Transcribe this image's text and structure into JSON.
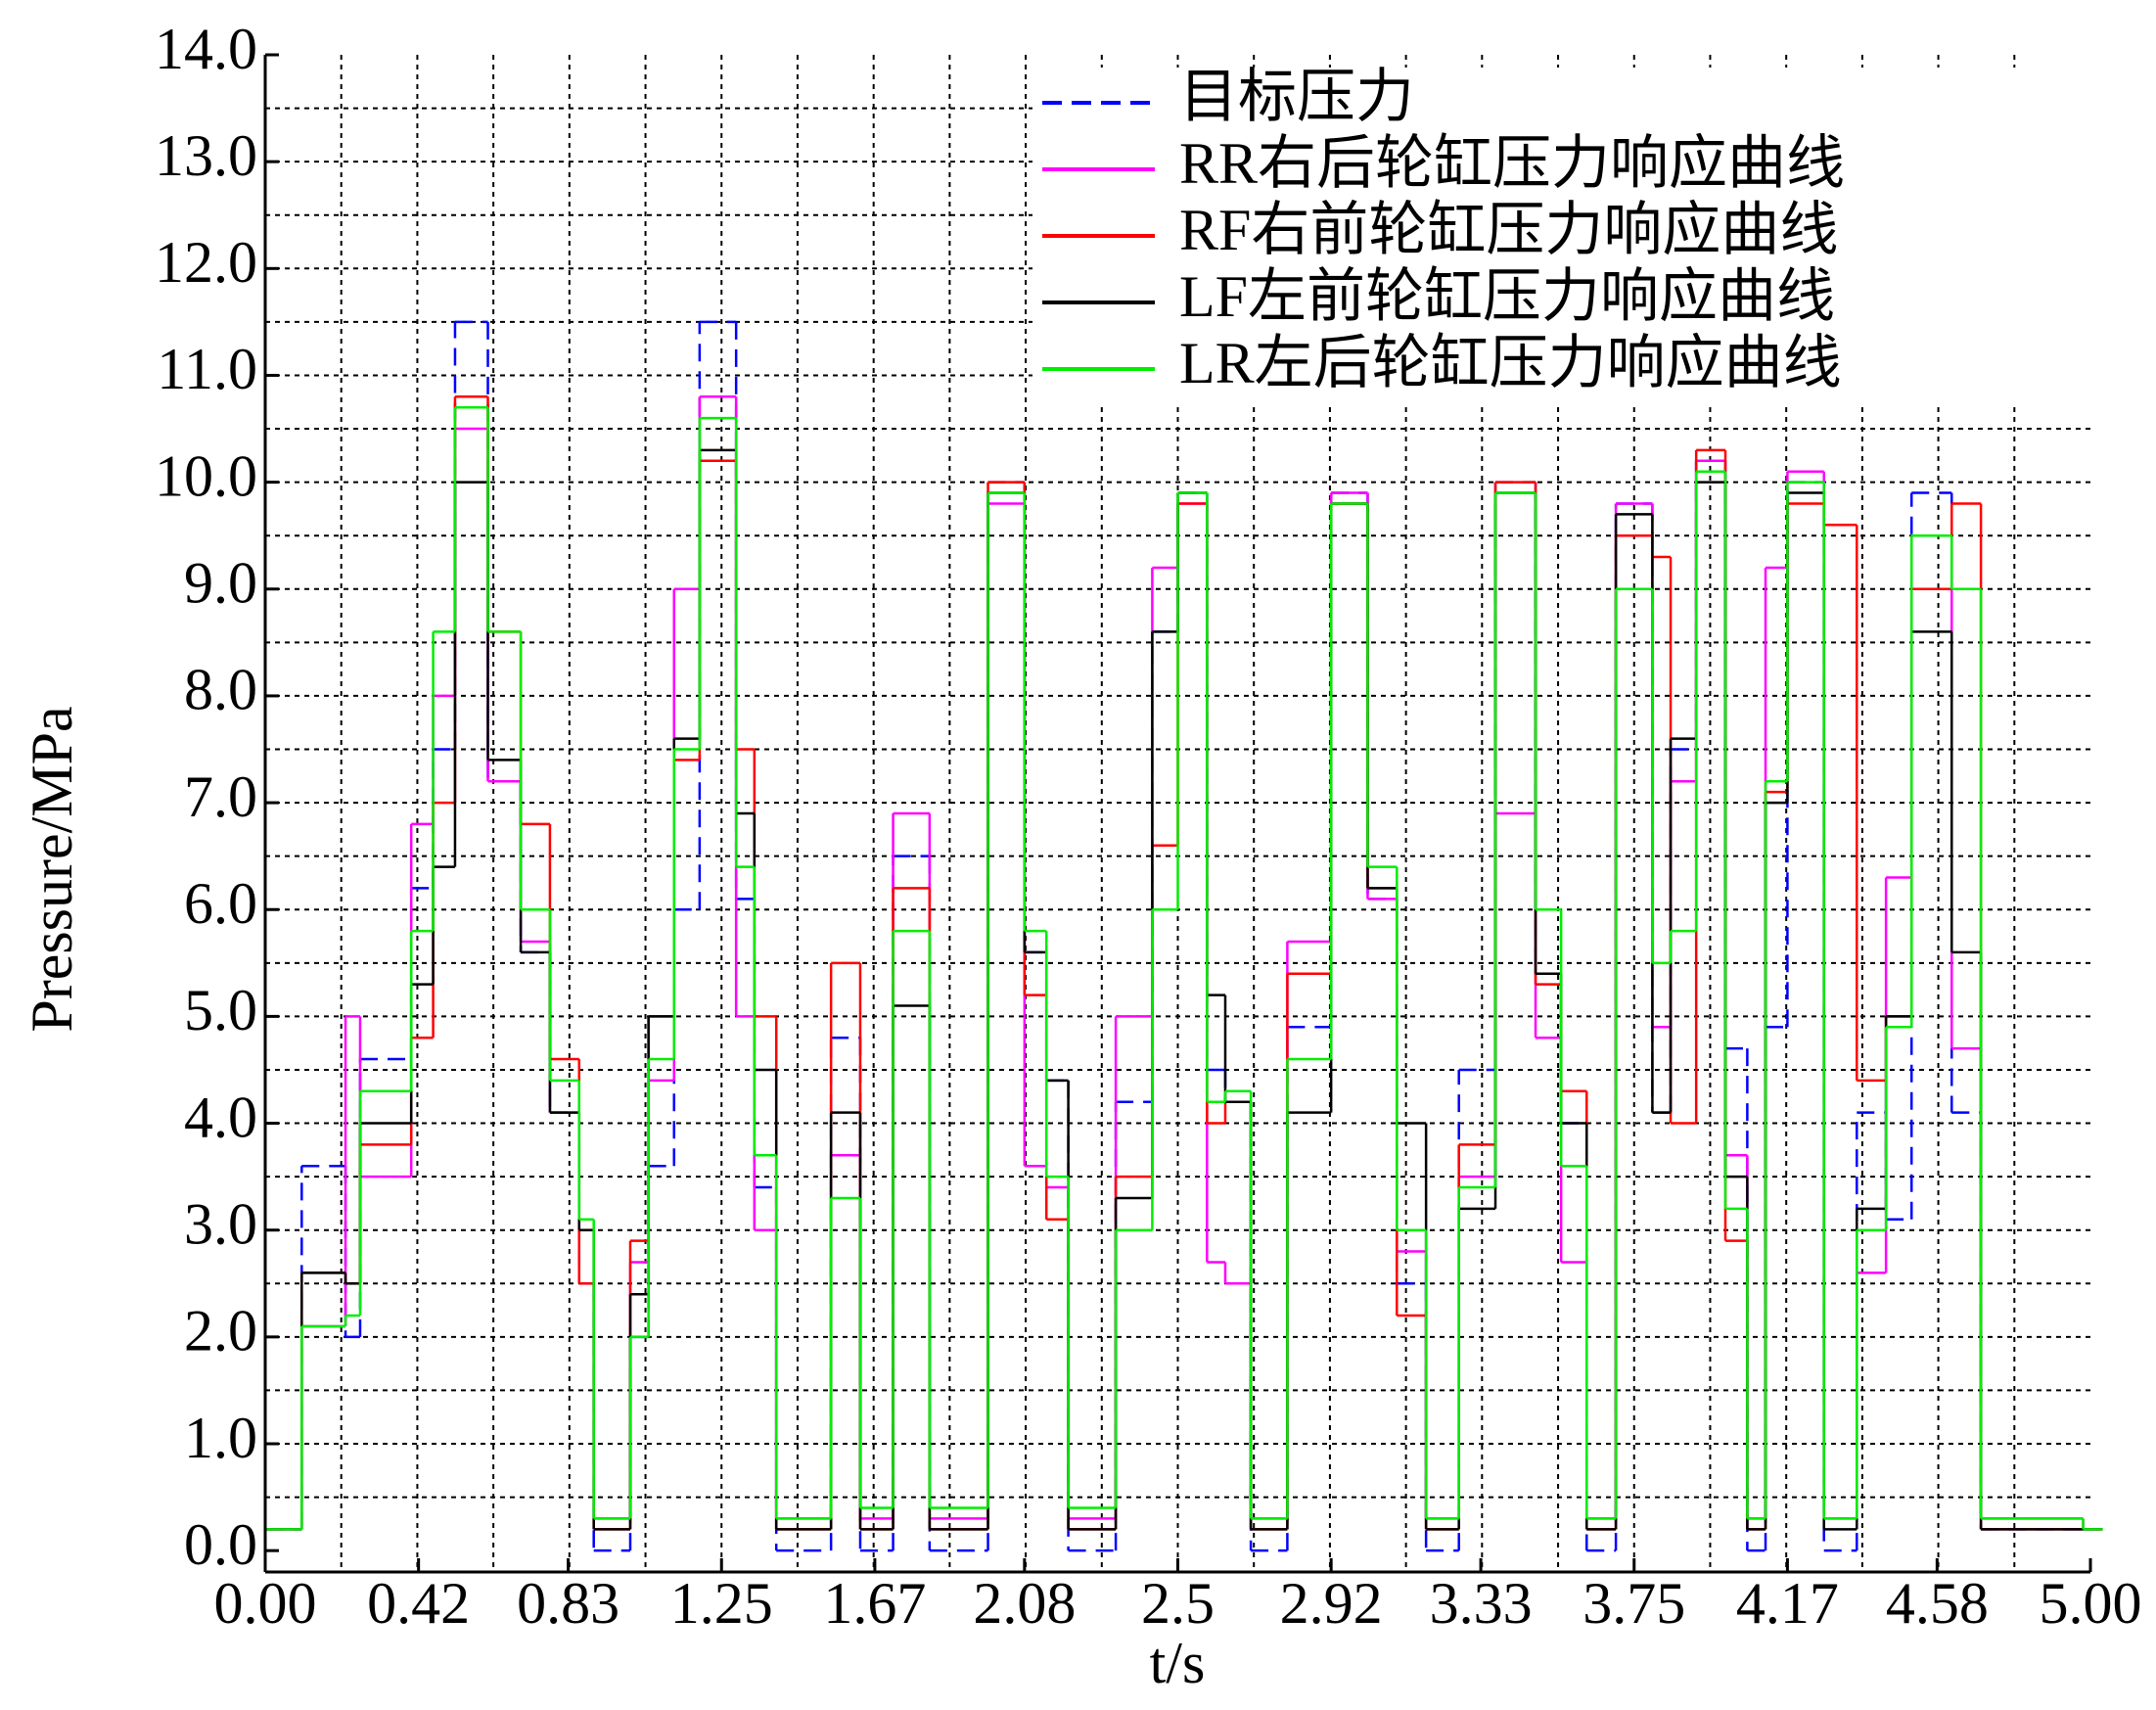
{
  "chart_data": {
    "type": "line",
    "step": "post",
    "ylabel": "Pressure/MPa",
    "xlabel": "t/s",
    "xlim": [
      0,
      5
    ],
    "ylim": [
      -0.2,
      14
    ],
    "xticks": [
      {
        "value": 0,
        "label": "0.00"
      },
      0.42,
      0.83,
      1.25,
      1.67,
      2.08,
      2.5,
      2.92,
      3.33,
      3.75,
      4.17,
      4.58,
      {
        "value": 5,
        "label": "5.00"
      }
    ],
    "yticks": [
      {
        "value": 0,
        "label": "0.0"
      },
      {
        "value": 1,
        "label": "1.0"
      },
      {
        "value": 2,
        "label": "2.0"
      },
      {
        "value": 3,
        "label": "3.0"
      },
      {
        "value": 4,
        "label": "4.0"
      },
      {
        "value": 5,
        "label": "5.0"
      },
      {
        "value": 6,
        "label": "6.0"
      },
      {
        "value": 7,
        "label": "7.0"
      },
      {
        "value": 8,
        "label": "8.0"
      },
      {
        "value": 9,
        "label": "9.0"
      },
      {
        "value": 10,
        "label": "10.0"
      },
      {
        "value": 11,
        "label": "11.0"
      },
      {
        "value": 12,
        "label": "12.0"
      },
      {
        "value": 13,
        "label": "13.0"
      },
      {
        "value": 14,
        "label": "14.0"
      }
    ],
    "grid": true,
    "xgrid": [
      0.2083,
      0.4167,
      0.625,
      0.8333,
      1.0417,
      1.25,
      1.4583,
      1.6667,
      1.875,
      2.0833,
      2.2917,
      2.5,
      2.7083,
      2.9167,
      3.125,
      3.3333,
      3.5417,
      3.75,
      3.9583,
      4.1667,
      4.375,
      4.5833,
      4.7917
    ],
    "ygrid": [
      0.5,
      1,
      1.5,
      2,
      2.5,
      3,
      3.5,
      4,
      4.5,
      5,
      5.5,
      6,
      6.5,
      7,
      7.5,
      8,
      8.5,
      9,
      9.5,
      10,
      10.5,
      11,
      11.5,
      12,
      12.5,
      13,
      13.5
    ],
    "legend": "upper right",
    "x": [
      0,
      0.1,
      0.22,
      0.26,
      0.4,
      0.46,
      0.52,
      0.61,
      0.7,
      0.78,
      0.86,
      0.9,
      1.0,
      1.05,
      1.12,
      1.19,
      1.29,
      1.34,
      1.4,
      1.55,
      1.63,
      1.72,
      1.82,
      1.98,
      2.08,
      2.14,
      2.2,
      2.33,
      2.43,
      2.5,
      2.58,
      2.63,
      2.7,
      2.8,
      2.92,
      3.02,
      3.1,
      3.18,
      3.27,
      3.37,
      3.48,
      3.55,
      3.62,
      3.7,
      3.8,
      3.85,
      3.92,
      4.0,
      4.06,
      4.11,
      4.17,
      4.27,
      4.36,
      4.44,
      4.51,
      4.62,
      4.7,
      4.98
    ],
    "series": [
      {
        "name": "目标压力",
        "color": "#0000ff",
        "dash": true,
        "values": [
          0.2,
          3.6,
          2.0,
          4.6,
          6.2,
          7.5,
          11.5,
          7.2,
          5.6,
          4.1,
          2.5,
          0,
          2.0,
          3.6,
          6.0,
          11.5,
          6.1,
          3.4,
          0,
          4.8,
          0,
          6.5,
          0,
          10,
          5.6,
          4.4,
          0,
          4.2,
          8.6,
          9.9,
          4.5,
          4.2,
          0,
          4.9,
          9.9,
          6.1,
          2.5,
          0,
          4.5,
          10,
          5.4,
          4.0,
          0,
          9.8,
          4.1,
          7.5,
          10.2,
          4.7,
          0,
          4.9,
          10,
          0,
          4.1,
          3.1,
          9.9,
          4.1,
          0.2,
          0.2
        ]
      },
      {
        "name": "RR右后轮缸压力响应曲线",
        "color": "#ff00ff",
        "values": [
          0.2,
          2.1,
          5.0,
          3.5,
          6.8,
          8.0,
          10.5,
          7.2,
          5.7,
          4.1,
          3.0,
          0.3,
          2.7,
          4.4,
          9.0,
          10.8,
          5.0,
          3.0,
          0.3,
          3.7,
          0.3,
          6.9,
          0.3,
          9.8,
          3.6,
          3.4,
          0.3,
          5.0,
          9.2,
          9.8,
          2.7,
          2.5,
          0.3,
          5.7,
          9.9,
          6.1,
          2.8,
          0.3,
          3.5,
          6.9,
          4.8,
          2.7,
          0.3,
          9.8,
          4.9,
          7.2,
          10.2,
          3.7,
          0.3,
          9.2,
          10.1,
          0.3,
          2.6,
          6.3,
          9.5,
          4.7,
          0.3,
          0.2
        ]
      },
      {
        "name": "RF右前轮缸压力响应曲线",
        "color": "#ff0000",
        "values": [
          0.2,
          2.6,
          2.5,
          3.8,
          4.8,
          7.0,
          10.8,
          8.6,
          6.8,
          4.6,
          2.5,
          0.2,
          2.9,
          5.0,
          7.4,
          10.2,
          7.5,
          5.0,
          0.2,
          5.5,
          0.2,
          6.2,
          0.2,
          10.0,
          5.2,
          3.1,
          0.2,
          3.5,
          6.6,
          9.8,
          4.0,
          4.2,
          0.2,
          5.4,
          9.8,
          6.2,
          2.2,
          0.2,
          3.8,
          10.0,
          5.3,
          4.3,
          0.2,
          9.5,
          9.3,
          4.0,
          10.3,
          2.9,
          0.2,
          7.1,
          9.8,
          9.6,
          4.4,
          5.0,
          9.0,
          9.8,
          0.2,
          0.2
        ]
      },
      {
        "name": "LF左前轮缸压力响应曲线",
        "color": "#000000",
        "values": [
          0.2,
          2.6,
          2.5,
          4.0,
          5.3,
          6.4,
          10.0,
          7.4,
          5.6,
          4.1,
          3.0,
          0.2,
          2.4,
          5.0,
          7.6,
          10.3,
          6.9,
          4.5,
          0.2,
          4.1,
          0.2,
          5.1,
          0.2,
          9.9,
          5.6,
          4.4,
          0.2,
          3.3,
          8.6,
          9.9,
          5.2,
          4.2,
          0.2,
          4.1,
          9.8,
          6.2,
          4.0,
          0.2,
          3.2,
          9.9,
          5.4,
          4.0,
          0.2,
          9.7,
          4.1,
          7.6,
          10.0,
          3.5,
          0.2,
          7.0,
          9.9,
          0.2,
          3.2,
          5.0,
          8.6,
          5.6,
          0.2,
          0.2
        ]
      },
      {
        "name": "LR左后轮缸压力响应曲线",
        "color": "#00ee00",
        "values": [
          0.2,
          2.1,
          2.2,
          4.3,
          5.8,
          8.6,
          10.7,
          8.6,
          6.0,
          4.4,
          3.1,
          0.3,
          2.0,
          4.6,
          7.5,
          10.6,
          6.4,
          3.7,
          0.3,
          3.3,
          0.4,
          5.8,
          0.4,
          9.9,
          5.8,
          3.5,
          0.4,
          3.0,
          6.0,
          9.9,
          4.2,
          4.3,
          0.3,
          4.6,
          9.8,
          6.4,
          3.0,
          0.3,
          3.4,
          9.9,
          6.0,
          3.6,
          0.3,
          9.0,
          5.5,
          5.8,
          10.1,
          3.2,
          0.3,
          7.2,
          10.0,
          0.3,
          3.0,
          4.9,
          9.5,
          9.0,
          0.3,
          0.2
        ]
      }
    ]
  }
}
